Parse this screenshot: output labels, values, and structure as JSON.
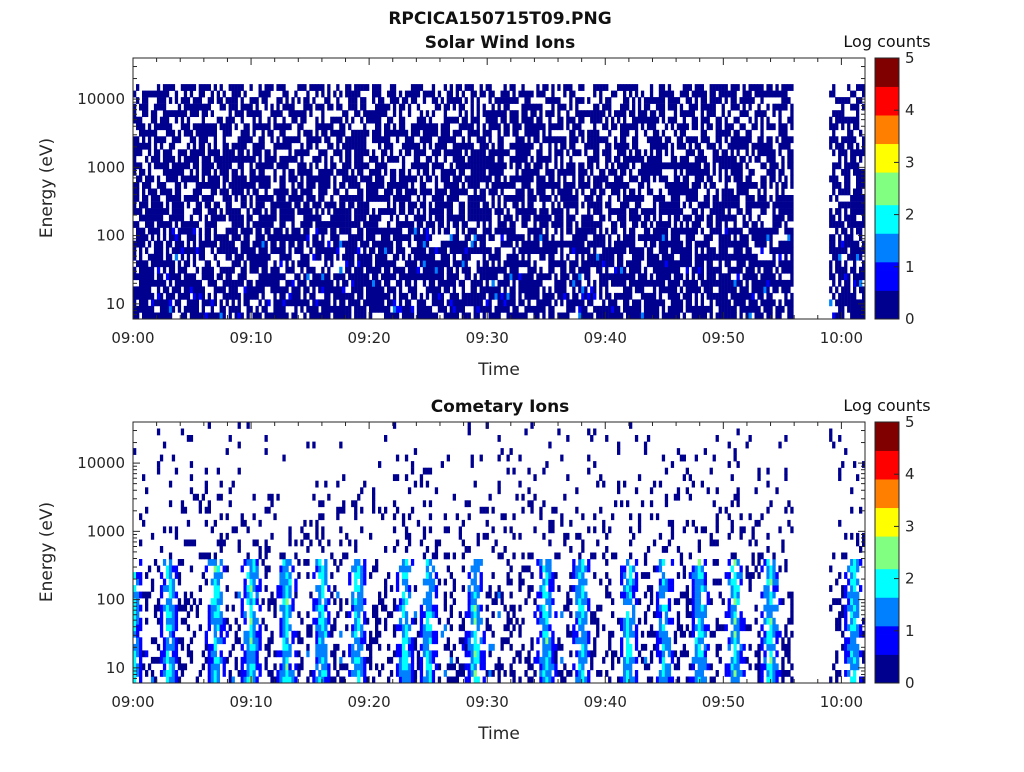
{
  "figure_title": "RPCICA150715T09.PNG",
  "colormap": [
    "#00008f",
    "#0000ff",
    "#0080ff",
    "#00ffff",
    "#80ff80",
    "#ffff00",
    "#ff8000",
    "#ff0000",
    "#800000"
  ],
  "chart_data": [
    {
      "type": "heatmap",
      "title": "Solar Wind Ions",
      "xlabel": "Time",
      "ylabel": "Energy (eV)",
      "x_ticks": [
        "09:00",
        "09:10",
        "09:20",
        "09:30",
        "09:40",
        "09:50",
        "10:00"
      ],
      "x_range": [
        "09:00",
        "10:02"
      ],
      "y_scale": "log",
      "y_ticks": [
        "10",
        "100",
        "1000",
        "10000"
      ],
      "y_range": [
        6,
        40000
      ],
      "colorbar": {
        "label": "Log counts",
        "range": [
          0,
          5
        ],
        "ticks": [
          "0",
          "1",
          "2",
          "3",
          "4",
          "5"
        ]
      },
      "data_gap": [
        "09:56",
        "09:59"
      ],
      "pattern": {
        "max_energy": 18000,
        "density_high_energy": 0.55,
        "density_low_energy": 0.75,
        "typical_level": 0.4,
        "peak_level": 2.0,
        "peak_energy_max": 120,
        "burst_times": []
      }
    },
    {
      "type": "heatmap",
      "title": "Cometary Ions",
      "xlabel": "Time",
      "ylabel": "Energy (eV)",
      "x_ticks": [
        "09:00",
        "09:10",
        "09:20",
        "09:30",
        "09:40",
        "09:50",
        "10:00"
      ],
      "x_range": [
        "09:00",
        "10:02"
      ],
      "y_scale": "log",
      "y_ticks": [
        "10",
        "100",
        "1000",
        "10000"
      ],
      "y_range": [
        6,
        40000
      ],
      "colorbar": {
        "label": "Log counts",
        "range": [
          0,
          5
        ],
        "ticks": [
          "0",
          "1",
          "2",
          "3",
          "4",
          "5"
        ]
      },
      "data_gap": [
        "09:56",
        "09:59"
      ],
      "pattern": {
        "max_energy": 40000,
        "density_high_energy": 0.015,
        "density_low_energy": 0.35,
        "typical_level": 0.4,
        "peak_level": 2.4,
        "peak_energy_max": 400,
        "burst_times": [
          "09:00",
          "09:03",
          "09:07",
          "09:10",
          "09:13",
          "09:16",
          "09:19",
          "09:23",
          "09:25",
          "09:29",
          "09:35",
          "09:38",
          "09:42",
          "09:45",
          "09:48",
          "09:51",
          "09:54",
          "10:01"
        ]
      }
    }
  ]
}
